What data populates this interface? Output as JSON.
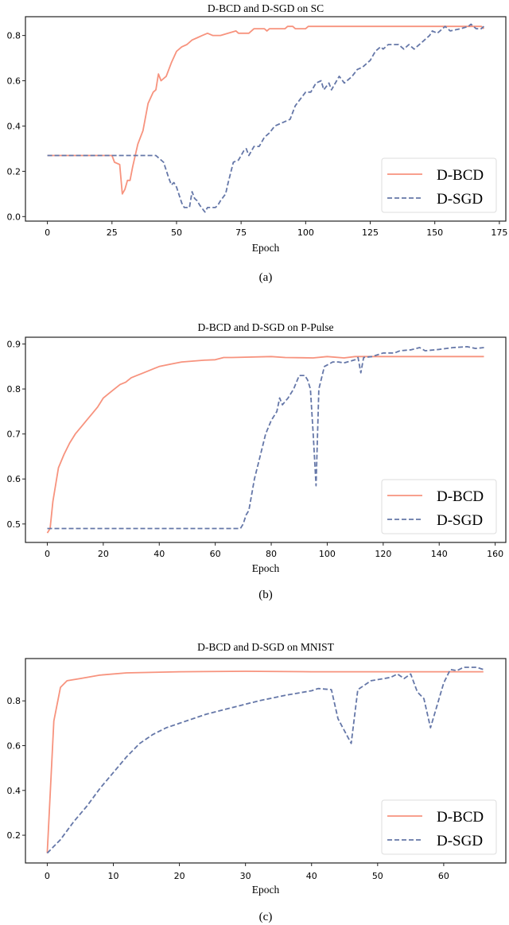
{
  "colors": {
    "bcd": "#f7937e",
    "sgd": "#6577a8"
  },
  "chart_data": [
    {
      "type": "line",
      "title": "D-BCD and D-SGD on SC",
      "xlabel": "Epoch",
      "ylabel": "",
      "caption": "(a)",
      "xlim": [
        -8.5,
        177.5
      ],
      "ylim": [
        -0.02,
        0.883
      ],
      "xticks": [
        0,
        25,
        50,
        75,
        100,
        125,
        150,
        175
      ],
      "yticks": [
        0.0,
        0.2,
        0.4,
        0.6,
        0.8
      ],
      "ytick_labels": [
        "0.0",
        "0.2",
        "0.4",
        "0.6",
        "0.8"
      ],
      "legend": "bottom-right",
      "series": [
        {
          "name": "D-BCD",
          "style": "solid",
          "points": [
            [
              0,
              0.27
            ],
            [
              25,
              0.27
            ],
            [
              26,
              0.24
            ],
            [
              28,
              0.23
            ],
            [
              29,
              0.1
            ],
            [
              30,
              0.12
            ],
            [
              31,
              0.16
            ],
            [
              32,
              0.16
            ],
            [
              33,
              0.22
            ],
            [
              35,
              0.32
            ],
            [
              37,
              0.38
            ],
            [
              39,
              0.5
            ],
            [
              41,
              0.55
            ],
            [
              42,
              0.56
            ],
            [
              43,
              0.63
            ],
            [
              44,
              0.6
            ],
            [
              46,
              0.62
            ],
            [
              48,
              0.68
            ],
            [
              50,
              0.73
            ],
            [
              52,
              0.75
            ],
            [
              54,
              0.76
            ],
            [
              56,
              0.78
            ],
            [
              58,
              0.79
            ],
            [
              60,
              0.8
            ],
            [
              62,
              0.81
            ],
            [
              64,
              0.8
            ],
            [
              67,
              0.8
            ],
            [
              70,
              0.81
            ],
            [
              73,
              0.82
            ],
            [
              74,
              0.81
            ],
            [
              78,
              0.81
            ],
            [
              80,
              0.83
            ],
            [
              84,
              0.83
            ],
            [
              85,
              0.82
            ],
            [
              86,
              0.83
            ],
            [
              92,
              0.83
            ],
            [
              93,
              0.84
            ],
            [
              95,
              0.84
            ],
            [
              96,
              0.83
            ],
            [
              100,
              0.83
            ],
            [
              101,
              0.84
            ],
            [
              168,
              0.84
            ],
            [
              169,
              0.83
            ]
          ]
        },
        {
          "name": "D-SGD",
          "style": "dashed",
          "points": [
            [
              0,
              0.27
            ],
            [
              42,
              0.27
            ],
            [
              43,
              0.26
            ],
            [
              45,
              0.24
            ],
            [
              47,
              0.17
            ],
            [
              48,
              0.14
            ],
            [
              49,
              0.15
            ],
            [
              50,
              0.13
            ],
            [
              52,
              0.06
            ],
            [
              53,
              0.04
            ],
            [
              55,
              0.04
            ],
            [
              56,
              0.11
            ],
            [
              57,
              0.08
            ],
            [
              58,
              0.07
            ],
            [
              59,
              0.05
            ],
            [
              61,
              0.02
            ],
            [
              62,
              0.04
            ],
            [
              65,
              0.04
            ],
            [
              66,
              0.05
            ],
            [
              67,
              0.07
            ],
            [
              69,
              0.1
            ],
            [
              70,
              0.15
            ],
            [
              72,
              0.24
            ],
            [
              74,
              0.25
            ],
            [
              76,
              0.29
            ],
            [
              77,
              0.3
            ],
            [
              78,
              0.27
            ],
            [
              80,
              0.31
            ],
            [
              82,
              0.31
            ],
            [
              84,
              0.35
            ],
            [
              86,
              0.37
            ],
            [
              88,
              0.4
            ],
            [
              90,
              0.41
            ],
            [
              92,
              0.42
            ],
            [
              94,
              0.43
            ],
            [
              96,
              0.49
            ],
            [
              98,
              0.52
            ],
            [
              100,
              0.55
            ],
            [
              102,
              0.55
            ],
            [
              104,
              0.59
            ],
            [
              106,
              0.6
            ],
            [
              107,
              0.56
            ],
            [
              109,
              0.59
            ],
            [
              110,
              0.56
            ],
            [
              112,
              0.6
            ],
            [
              113,
              0.62
            ],
            [
              115,
              0.59
            ],
            [
              118,
              0.62
            ],
            [
              120,
              0.65
            ],
            [
              122,
              0.66
            ],
            [
              125,
              0.69
            ],
            [
              127,
              0.73
            ],
            [
              129,
              0.75
            ],
            [
              130,
              0.74
            ],
            [
              132,
              0.76
            ],
            [
              136,
              0.76
            ],
            [
              138,
              0.74
            ],
            [
              140,
              0.76
            ],
            [
              142,
              0.74
            ],
            [
              145,
              0.77
            ],
            [
              148,
              0.8
            ],
            [
              149,
              0.82
            ],
            [
              151,
              0.81
            ],
            [
              154,
              0.84
            ],
            [
              156,
              0.82
            ],
            [
              160,
              0.83
            ],
            [
              163,
              0.84
            ],
            [
              164,
              0.85
            ],
            [
              166,
              0.83
            ],
            [
              168,
              0.83
            ],
            [
              169,
              0.84
            ]
          ]
        }
      ]
    },
    {
      "type": "line",
      "title": "D-BCD and D-SGD on P-Pulse",
      "xlabel": "Epoch",
      "ylabel": "",
      "caption": "(b)",
      "xlim": [
        -7.8,
        163.8
      ],
      "ylim": [
        0.459,
        0.915
      ],
      "xticks": [
        0,
        20,
        40,
        60,
        80,
        100,
        120,
        140,
        160
      ],
      "yticks": [
        0.5,
        0.6,
        0.7,
        0.8,
        0.9
      ],
      "ytick_labels": [
        "0.5",
        "0.6",
        "0.7",
        "0.8",
        "0.9"
      ],
      "legend": "bottom-right",
      "series": [
        {
          "name": "D-BCD",
          "style": "solid",
          "points": [
            [
              0,
              0.48
            ],
            [
              1,
              0.49
            ],
            [
              2,
              0.55
            ],
            [
              4,
              0.625
            ],
            [
              6,
              0.655
            ],
            [
              8,
              0.68
            ],
            [
              10,
              0.7
            ],
            [
              12,
              0.715
            ],
            [
              14,
              0.73
            ],
            [
              16,
              0.745
            ],
            [
              18,
              0.76
            ],
            [
              20,
              0.78
            ],
            [
              22,
              0.79
            ],
            [
              24,
              0.8
            ],
            [
              26,
              0.81
            ],
            [
              28,
              0.815
            ],
            [
              30,
              0.825
            ],
            [
              32,
              0.83
            ],
            [
              34,
              0.835
            ],
            [
              36,
              0.84
            ],
            [
              38,
              0.845
            ],
            [
              40,
              0.85
            ],
            [
              44,
              0.855
            ],
            [
              48,
              0.86
            ],
            [
              52,
              0.862
            ],
            [
              56,
              0.864
            ],
            [
              60,
              0.865
            ],
            [
              63,
              0.87
            ],
            [
              66,
              0.87
            ],
            [
              80,
              0.872
            ],
            [
              85,
              0.87
            ],
            [
              95,
              0.869
            ],
            [
              100,
              0.872
            ],
            [
              106,
              0.869
            ],
            [
              110,
              0.872
            ],
            [
              156,
              0.872
            ]
          ]
        },
        {
          "name": "D-SGD",
          "style": "dashed",
          "points": [
            [
              0,
              0.49
            ],
            [
              69,
              0.49
            ],
            [
              70,
              0.5
            ],
            [
              71,
              0.52
            ],
            [
              72,
              0.53
            ],
            [
              74,
              0.6
            ],
            [
              76,
              0.65
            ],
            [
              78,
              0.7
            ],
            [
              80,
              0.73
            ],
            [
              82,
              0.75
            ],
            [
              83,
              0.78
            ],
            [
              84,
              0.765
            ],
            [
              86,
              0.78
            ],
            [
              88,
              0.8
            ],
            [
              90,
              0.83
            ],
            [
              92,
              0.83
            ],
            [
              93,
              0.82
            ],
            [
              94,
              0.8
            ],
            [
              95,
              0.7
            ],
            [
              96,
              0.585
            ],
            [
              97,
              0.8
            ],
            [
              99,
              0.85
            ],
            [
              102,
              0.86
            ],
            [
              104,
              0.86
            ],
            [
              106,
              0.858
            ],
            [
              110,
              0.865
            ],
            [
              111,
              0.87
            ],
            [
              112,
              0.836
            ],
            [
              113,
              0.87
            ],
            [
              116,
              0.872
            ],
            [
              120,
              0.88
            ],
            [
              124,
              0.88
            ],
            [
              126,
              0.885
            ],
            [
              130,
              0.887
            ],
            [
              133,
              0.892
            ],
            [
              135,
              0.885
            ],
            [
              140,
              0.888
            ],
            [
              145,
              0.892
            ],
            [
              150,
              0.894
            ],
            [
              153,
              0.89
            ],
            [
              156,
              0.892
            ]
          ]
        }
      ]
    },
    {
      "type": "line",
      "title": "D-BCD and D-SGD on MNIST",
      "xlabel": "Epoch",
      "ylabel": "",
      "caption": "(c)",
      "xlim": [
        -3.3,
        69.4
      ],
      "ylim": [
        0.076,
        0.989
      ],
      "xticks": [
        0,
        10,
        20,
        30,
        40,
        50,
        60
      ],
      "yticks": [
        0.2,
        0.4,
        0.6,
        0.8
      ],
      "ytick_labels": [
        "0.2",
        "0.4",
        "0.6",
        "0.8"
      ],
      "legend": "bottom-right",
      "series": [
        {
          "name": "D-BCD",
          "style": "solid",
          "points": [
            [
              0,
              0.12
            ],
            [
              1,
              0.71
            ],
            [
              2,
              0.86
            ],
            [
              3,
              0.89
            ],
            [
              5,
              0.9
            ],
            [
              8,
              0.915
            ],
            [
              12,
              0.925
            ],
            [
              20,
              0.93
            ],
            [
              30,
              0.932
            ],
            [
              40,
              0.93
            ],
            [
              66,
              0.93
            ]
          ]
        },
        {
          "name": "D-SGD",
          "style": "dashed",
          "points": [
            [
              0,
              0.12
            ],
            [
              2,
              0.18
            ],
            [
              4,
              0.26
            ],
            [
              6,
              0.33
            ],
            [
              8,
              0.41
            ],
            [
              10,
              0.48
            ],
            [
              12,
              0.55
            ],
            [
              14,
              0.61
            ],
            [
              16,
              0.65
            ],
            [
              18,
              0.68
            ],
            [
              20,
              0.7
            ],
            [
              24,
              0.74
            ],
            [
              28,
              0.77
            ],
            [
              32,
              0.8
            ],
            [
              36,
              0.825
            ],
            [
              40,
              0.845
            ],
            [
              41,
              0.855
            ],
            [
              43,
              0.85
            ],
            [
              44,
              0.72
            ],
            [
              46,
              0.61
            ],
            [
              47,
              0.85
            ],
            [
              49,
              0.89
            ],
            [
              50,
              0.895
            ],
            [
              51,
              0.9
            ],
            [
              52,
              0.905
            ],
            [
              53,
              0.92
            ],
            [
              54,
              0.9
            ],
            [
              55,
              0.92
            ],
            [
              56,
              0.84
            ],
            [
              57,
              0.81
            ],
            [
              58,
              0.68
            ],
            [
              60,
              0.88
            ],
            [
              61,
              0.94
            ],
            [
              62,
              0.935
            ],
            [
              63,
              0.95
            ],
            [
              65,
              0.95
            ],
            [
              66,
              0.94
            ]
          ]
        }
      ]
    }
  ]
}
